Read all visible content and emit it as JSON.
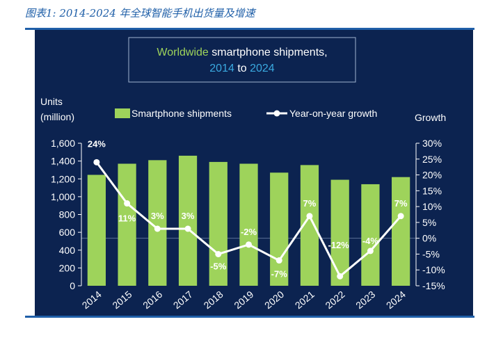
{
  "caption": "图表1: 2014-2024 年全球智能手机出货量及增速",
  "chart_data": {
    "type": "bar",
    "title_parts": {
      "line1_highlight": "Worldwide",
      "line1_rest": " smartphone shipments,",
      "line2_year_start": "2014",
      "line2_to": " to ",
      "line2_year_end": "2024"
    },
    "left_axis_label_line1": "Units",
    "left_axis_label_line2": "(million)",
    "right_axis_label": "Growth",
    "legend": {
      "bars": "Smartphone shipments",
      "line": "Year-on-year growth"
    },
    "categories": [
      "2014",
      "2015",
      "2016",
      "2017",
      "2018",
      "2019",
      "2020",
      "2021",
      "2022",
      "2023",
      "2024"
    ],
    "series": [
      {
        "name": "Smartphone shipments",
        "axis": "left",
        "values": [
          1245,
          1370,
          1410,
          1460,
          1390,
          1370,
          1270,
          1355,
          1190,
          1140,
          1220
        ]
      },
      {
        "name": "Year-on-year growth",
        "axis": "right",
        "values": [
          24,
          11,
          3,
          3,
          -5,
          -2,
          -7,
          7,
          -12,
          -4,
          7
        ],
        "labels": [
          "24%",
          "11%",
          "3%",
          "3%",
          "-5%",
          "-2%",
          "-7%",
          "7%",
          "-12%",
          "-4%",
          "7%"
        ]
      }
    ],
    "left_ylim": [
      0,
      1600
    ],
    "left_ticks": [
      "0",
      "200",
      "400",
      "600",
      "800",
      "1,000",
      "1,200",
      "1,400",
      "1,600"
    ],
    "right_ylim": [
      -15,
      30
    ],
    "right_ticks": [
      "-15%",
      "-10%",
      "-5%",
      "0%",
      "5%",
      "10%",
      "15%",
      "20%",
      "25%",
      "30%"
    ],
    "colors": {
      "background": "#0c2350",
      "bar": "#9ed35b",
      "line": "#ffffff",
      "highlight_green": "#9ed35b",
      "highlight_blue": "#3aa9e0"
    }
  }
}
